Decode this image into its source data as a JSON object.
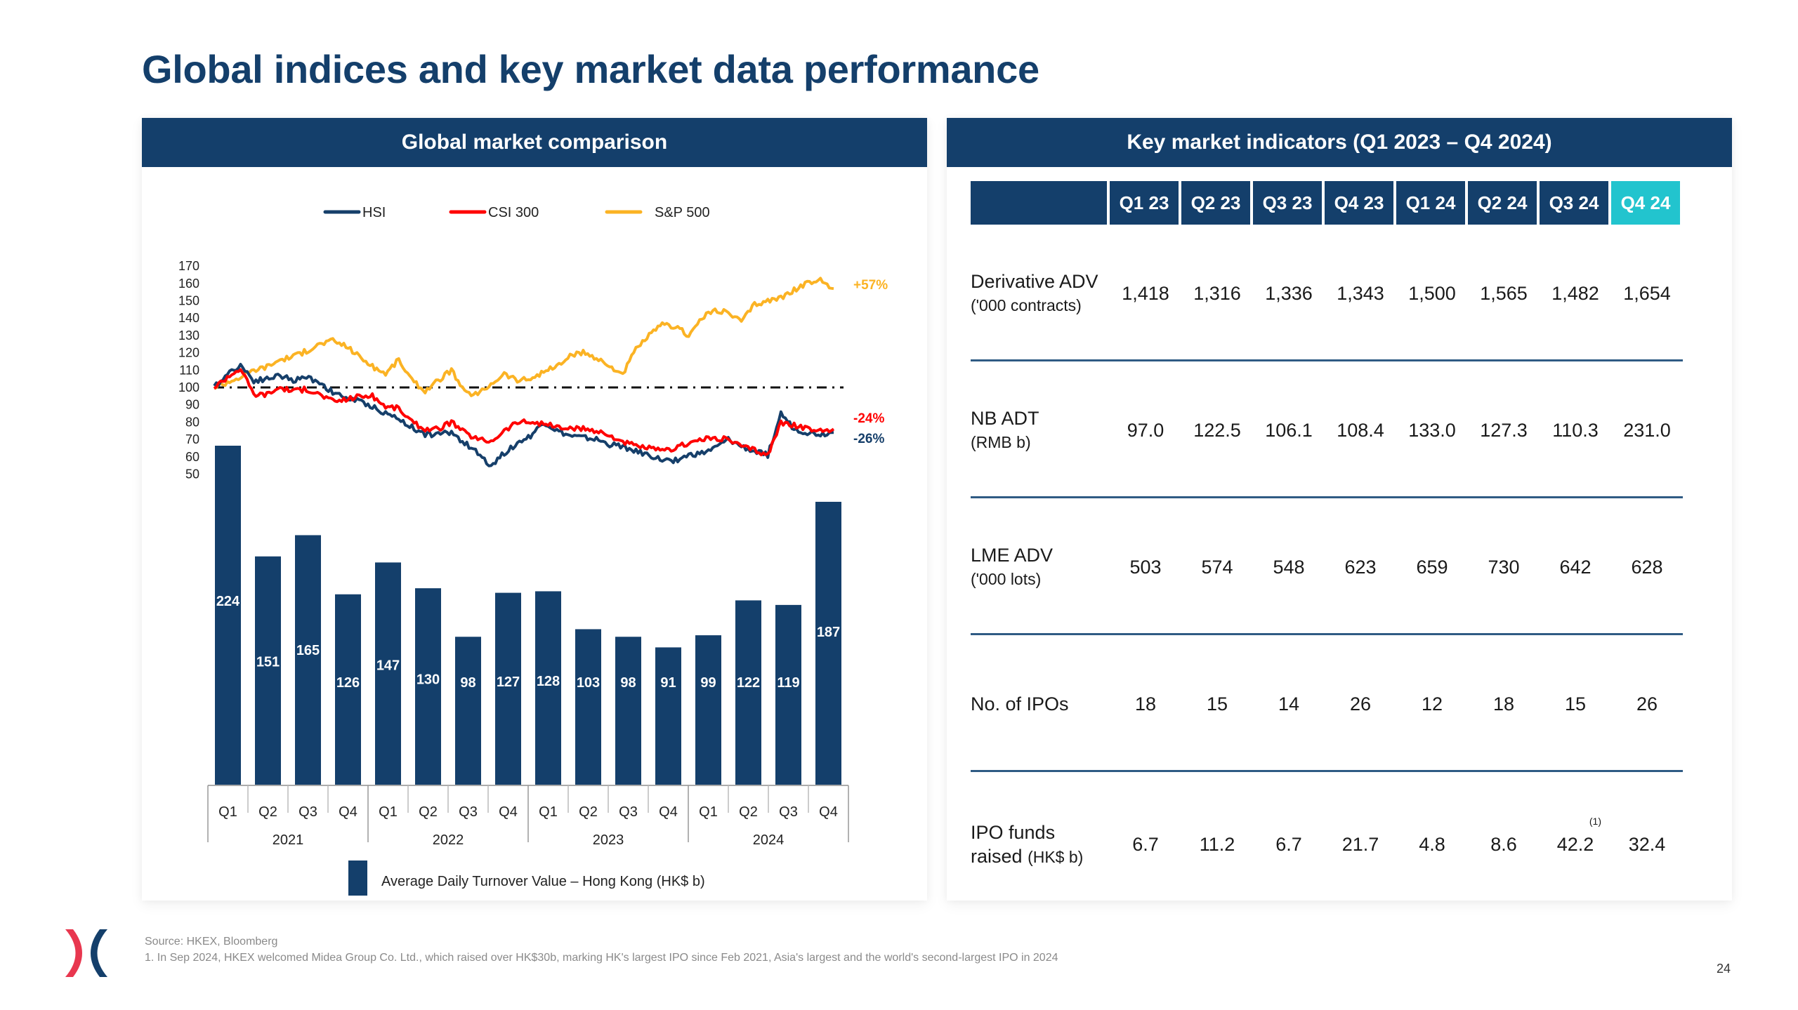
{
  "page": {
    "title": "Global indices and key market data performance",
    "page_number": "24",
    "source": "Source: HKEX, Bloomberg",
    "footnote": "1. In Sep 2024, HKEX welcomed Midea Group Co. Ltd., which raised over HK$30b, marking HK's largest IPO since Feb 2021, Asia's largest and the world's second-largest IPO in 2024",
    "logo": "hkex-logo-icon"
  },
  "colors": {
    "navy": "#143f6b",
    "teal": "#22c4ce",
    "hsi": "#163f6a",
    "csi300": "#ff0000",
    "sp500": "#fbb324"
  },
  "left_panel": {
    "header": "Global market comparison"
  },
  "right_panel": {
    "header": "Key market indicators (Q1 2023 – Q4 2024)"
  },
  "chart_data": [
    {
      "type": "line",
      "title": "Global market comparison",
      "ylabel": "",
      "ylim": [
        50,
        170
      ],
      "yticks": [
        170,
        160,
        150,
        140,
        130,
        120,
        110,
        100,
        90,
        80,
        70,
        60,
        50
      ],
      "x_period": [
        "2021-Q1",
        "2024-Q4"
      ],
      "legend": [
        "HSI",
        "CSI 300",
        "S&P 500"
      ],
      "legend_position": "top",
      "reference_line": 100,
      "end_labels": {
        "HSI": "-26%",
        "CSI 300": "-24%",
        "S&P 500": "+57%"
      },
      "series": [
        {
          "name": "HSI",
          "values": [
            100,
            108,
            113,
            104,
            105,
            107,
            104,
            106,
            103,
            97,
            94,
            92,
            89,
            85,
            82,
            77,
            73,
            73,
            74,
            68,
            62,
            55,
            62,
            68,
            72,
            80,
            75,
            72,
            71,
            70,
            67,
            66,
            63,
            61,
            58,
            58,
            61,
            62,
            65,
            70,
            66,
            63,
            61,
            85,
            76,
            74,
            73,
            74
          ]
        },
        {
          "name": "CSI 300",
          "values": [
            100,
            106,
            111,
            96,
            96,
            100,
            98,
            99,
            96,
            92,
            93,
            95,
            95,
            89,
            88,
            80,
            76,
            76,
            80,
            74,
            70,
            69,
            75,
            80,
            80,
            79,
            77,
            76,
            76,
            75,
            72,
            69,
            66,
            65,
            63,
            65,
            68,
            70,
            71,
            70,
            66,
            64,
            61,
            80,
            78,
            76,
            75,
            76
          ]
        },
        {
          "name": "S&P 500",
          "values": [
            100,
            103,
            106,
            110,
            112,
            116,
            118,
            121,
            125,
            127,
            124,
            118,
            112,
            108,
            116,
            104,
            98,
            104,
            110,
            97,
            96,
            102,
            108,
            104,
            105,
            109,
            112,
            118,
            120,
            117,
            112,
            108,
            122,
            130,
            136,
            135,
            130,
            140,
            145,
            143,
            138,
            148,
            150,
            152,
            156,
            160,
            162,
            157
          ]
        }
      ]
    },
    {
      "type": "bar",
      "title": "Average Daily Turnover Value – Hong Kong (HK$ b)",
      "legend": [
        "Average Daily Turnover Value – Hong Kong (HK$ b)"
      ],
      "legend_position": "bottom",
      "categories": [
        "Q1",
        "Q2",
        "Q3",
        "Q4",
        "Q1",
        "Q2",
        "Q3",
        "Q4",
        "Q1",
        "Q2",
        "Q3",
        "Q4",
        "Q1",
        "Q2",
        "Q3",
        "Q4"
      ],
      "groups": [
        "2021",
        "2022",
        "2023",
        "2024"
      ],
      "values": [
        224,
        151,
        165,
        126,
        147,
        130,
        98,
        127,
        128,
        103,
        98,
        91,
        99,
        122,
        119,
        187
      ],
      "ylim": [
        0,
        224
      ]
    }
  ],
  "table": {
    "columns": [
      "Q1 23",
      "Q2 23",
      "Q3 23",
      "Q4 23",
      "Q1 24",
      "Q2 24",
      "Q3 24",
      "Q4 24"
    ],
    "highlight_column": "Q4 24",
    "rows": [
      {
        "label": "Derivative ADV",
        "unit": "('000 contracts)",
        "values": [
          "1,418",
          "1,316",
          "1,336",
          "1,343",
          "1,500",
          "1,565",
          "1,482",
          "1,654"
        ]
      },
      {
        "label": "NB ADT",
        "unit": "(RMB b)",
        "values": [
          "97.0",
          "122.5",
          "106.1",
          "108.4",
          "133.0",
          "127.3",
          "110.3",
          "231.0"
        ]
      },
      {
        "label": "LME ADV",
        "unit": "('000 lots)",
        "values": [
          "503",
          "574",
          "548",
          "623",
          "659",
          "730",
          "642",
          "628"
        ]
      },
      {
        "label": "No. of IPOs",
        "unit": "",
        "values": [
          "18",
          "15",
          "14",
          "26",
          "12",
          "18",
          "15",
          "26"
        ]
      },
      {
        "label": "IPO funds",
        "label2": "raised",
        "unit": "(HK$ b)",
        "values": [
          "6.7",
          "11.2",
          "6.7",
          "21.7",
          "4.8",
          "8.6",
          "42.2",
          "32.4"
        ],
        "footnote_col": 6,
        "footnote_mark": "(1)"
      }
    ]
  }
}
